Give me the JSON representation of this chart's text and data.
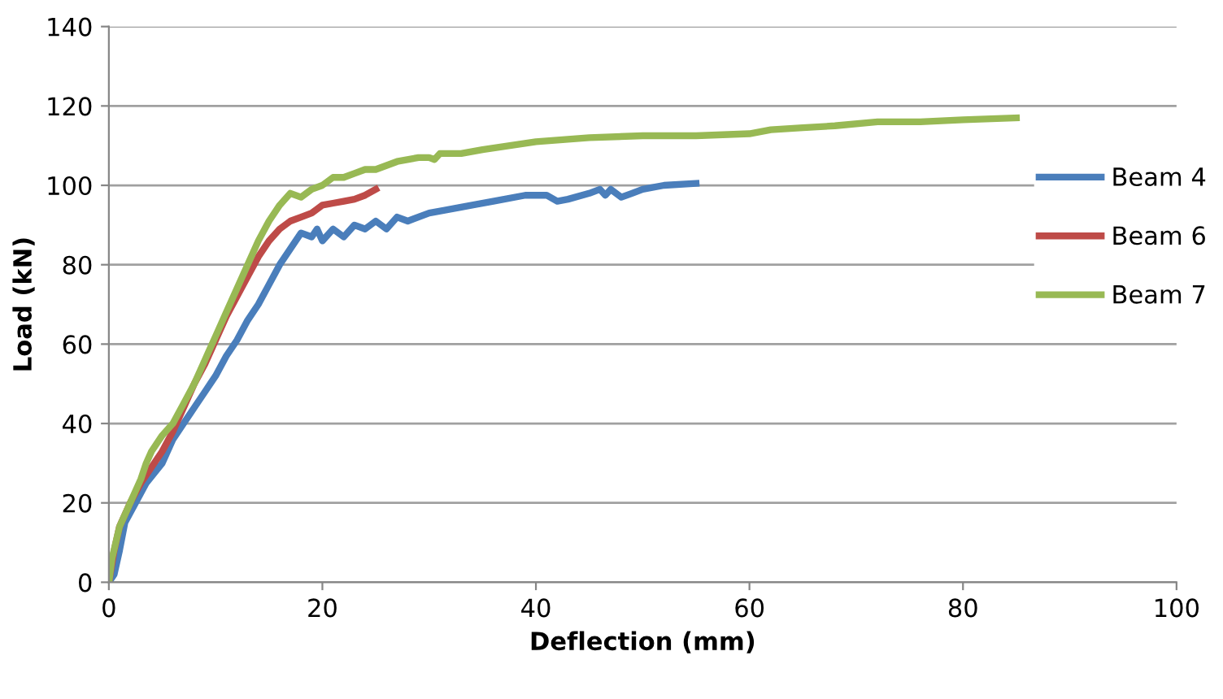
{
  "chart_data": {
    "type": "line",
    "xlabel": "Deflection (mm)",
    "ylabel": "Load (kN)",
    "xlim": [
      0,
      100
    ],
    "xticks": [
      0,
      20,
      40,
      60,
      80,
      100
    ],
    "ylim": [
      0,
      140
    ],
    "yticks": [
      0,
      20,
      40,
      60,
      80,
      100,
      120,
      140
    ],
    "grid": "y",
    "legend": "right",
    "marker": "none",
    "line_style": "solid",
    "series": [
      {
        "name": "Beam 4",
        "color": "#4a7ebb",
        "x": [
          0,
          0.5,
          1,
          1.5,
          2.5,
          3.5,
          5,
          6,
          7,
          8,
          9,
          10,
          11,
          12,
          13,
          14,
          15,
          16,
          17,
          18,
          19,
          19.5,
          20,
          21,
          22,
          23,
          24,
          25,
          26,
          27,
          28,
          30,
          33,
          36,
          39,
          41,
          42,
          43,
          45,
          46,
          46.5,
          47,
          48,
          49,
          50,
          52,
          55
        ],
        "values": [
          0,
          2,
          8,
          15,
          20,
          25,
          30,
          36,
          40,
          44,
          48,
          52,
          57,
          61,
          66,
          70,
          75,
          80,
          84,
          88,
          87,
          89,
          86,
          89,
          87,
          90,
          89,
          91,
          89,
          92,
          91,
          93,
          94.5,
          96,
          97.5,
          97.5,
          96,
          96.5,
          98,
          99,
          97.5,
          99,
          97,
          98,
          99,
          100,
          100.5
        ]
      },
      {
        "name": "Beam 6",
        "color": "#be4b48",
        "x": [
          0,
          0.5,
          1,
          2,
          3,
          4,
          5,
          6,
          7,
          8,
          9,
          10,
          11,
          12,
          13,
          14,
          15,
          16,
          17,
          18,
          19,
          20,
          21,
          22,
          23,
          24,
          25
        ],
        "values": [
          0,
          8,
          14,
          20,
          25,
          29,
          33,
          38,
          44,
          50,
          55,
          61,
          67,
          72,
          77,
          82,
          86,
          89,
          91,
          92,
          93,
          95,
          95.5,
          96,
          96.5,
          97.5,
          99
        ]
      },
      {
        "name": "Beam 7",
        "color": "#98b954",
        "x": [
          0,
          0.3,
          1,
          2,
          3,
          3.5,
          4,
          5,
          6,
          7,
          8,
          9,
          10,
          11,
          12,
          13,
          14,
          15,
          16,
          17,
          18,
          19,
          20,
          21,
          22,
          23,
          24,
          25,
          27,
          29,
          30,
          30.5,
          31,
          33,
          35,
          40,
          45,
          50,
          55,
          60,
          62,
          65,
          68,
          72,
          76,
          80,
          85
        ],
        "values": [
          0,
          6,
          14,
          20,
          26,
          30,
          33,
          37,
          40,
          45,
          50,
          56,
          62,
          68,
          74,
          80,
          86,
          91,
          95,
          98,
          97,
          99,
          100,
          102,
          102,
          103,
          104,
          104,
          106,
          107,
          107,
          106.5,
          108,
          108,
          109,
          111,
          112,
          112.5,
          112.5,
          113,
          114,
          114.5,
          115,
          116,
          116,
          116.5,
          117
        ]
      }
    ]
  }
}
